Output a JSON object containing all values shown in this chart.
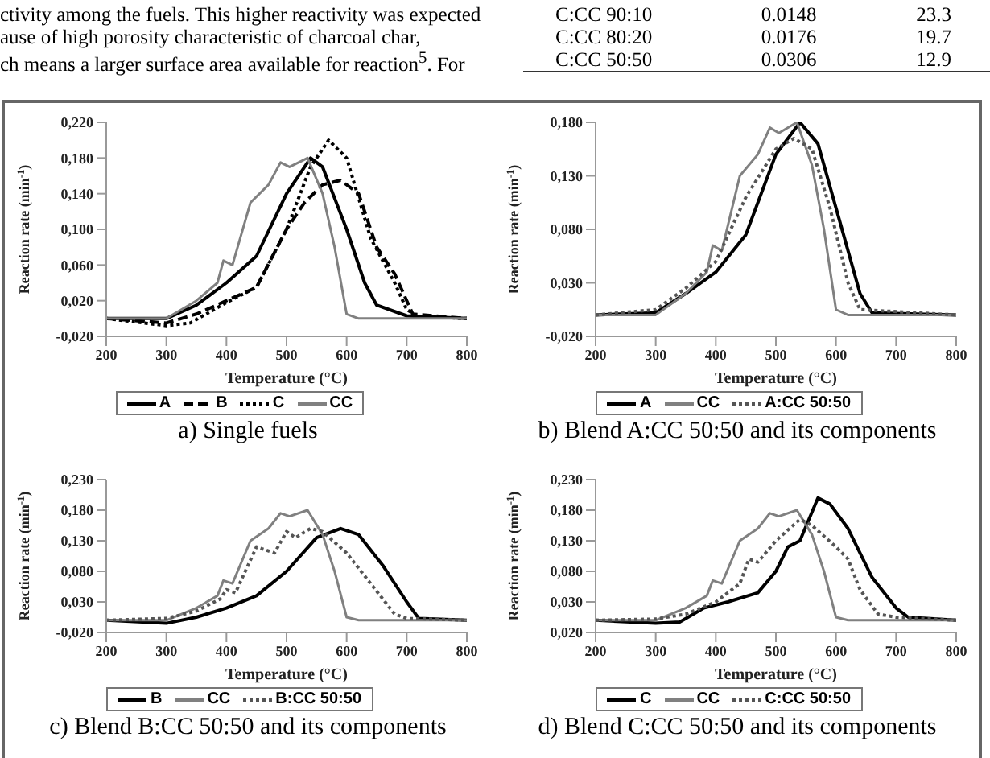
{
  "chart_data": [
    {
      "type": "other",
      "annotations": [
        "ctivity among the fuels. This higher reactivity was expected",
        "ause of high porosity characteristic of charcoal char,",
        "ch means a larger surface area available for reaction$^{5}$. For",
        "C:CC 90:10",
        "0.0148",
        "23.3",
        "C:CC 80:20",
        "0.0176",
        "19.7",
        "C:CC 50:50",
        "0.0306",
        "12.9"
      ]
    },
    {
      "type": "line",
      "title": "a) Single fuels",
      "xlabel": "Temperature (°C)",
      "ylabel": "Reaction rate (min$^{-1}$)",
      "xlim": [
        200,
        800
      ],
      "xticks": [
        200,
        300,
        400,
        500,
        600,
        700,
        800
      ],
      "ylim": [
        -0.02,
        0.22
      ],
      "yticks": [
        {
          "value": -0.02,
          "label": "-0,020"
        },
        {
          "value": 0.02,
          "label": "0,020"
        },
        {
          "value": 0.06,
          "label": "0,060"
        },
        {
          "value": 0.1,
          "label": "0,100"
        },
        {
          "value": 0.14,
          "label": "0,140"
        },
        {
          "value": 0.18,
          "label": "0,180"
        },
        {
          "value": 0.22,
          "label": "0,220"
        }
      ],
      "legend": "bottom",
      "series": [
        {
          "name": "A",
          "color": "#000000",
          "line_style": "solid",
          "x": [
            200,
            300,
            350,
            400,
            450,
            500,
            540,
            560,
            600,
            630,
            650,
            700,
            800
          ],
          "values": [
            0,
            0,
            0.015,
            0.04,
            0.07,
            0.14,
            0.18,
            0.17,
            0.1,
            0.04,
            0.015,
            0.003,
            0
          ]
        },
        {
          "name": "B",
          "color": "#000000",
          "line_style": "dashed",
          "x": [
            200,
            300,
            350,
            400,
            450,
            500,
            530,
            560,
            590,
            620,
            650,
            680,
            710,
            800
          ],
          "values": [
            0,
            -0.005,
            0.005,
            0.02,
            0.035,
            0.1,
            0.13,
            0.15,
            0.155,
            0.14,
            0.08,
            0.05,
            0.005,
            0
          ]
        },
        {
          "name": "C",
          "color": "#000000",
          "line_style": "dotted",
          "x": [
            200,
            300,
            340,
            400,
            450,
            500,
            540,
            570,
            600,
            640,
            680,
            700,
            720,
            800
          ],
          "values": [
            0,
            -0.008,
            -0.005,
            0.018,
            0.035,
            0.1,
            0.17,
            0.2,
            0.18,
            0.09,
            0.04,
            0.01,
            0.002,
            0
          ]
        },
        {
          "name": "CC",
          "color": "#808080",
          "line_style": "solid",
          "x": [
            200,
            300,
            350,
            385,
            395,
            410,
            440,
            470,
            490,
            505,
            535,
            560,
            580,
            600,
            620,
            800
          ],
          "values": [
            0,
            0,
            0.02,
            0.04,
            0.065,
            0.06,
            0.13,
            0.15,
            0.175,
            0.17,
            0.18,
            0.14,
            0.08,
            0.005,
            0,
            0
          ]
        }
      ]
    },
    {
      "type": "line",
      "title": "b) Blend A:CC 50:50 and its components",
      "xlabel": "Temperature (°C)",
      "ylabel": "Reaction rate (min$^{-1}$)",
      "xlim": [
        200,
        800
      ],
      "xticks": [
        200,
        300,
        400,
        500,
        600,
        700,
        800
      ],
      "ylim": [
        -0.02,
        0.18
      ],
      "yticks": [
        {
          "value": -0.02,
          "label": "-0,020"
        },
        {
          "value": 0.03,
          "label": "0,030"
        },
        {
          "value": 0.08,
          "label": "0,080"
        },
        {
          "value": 0.13,
          "label": "0,130"
        },
        {
          "value": 0.18,
          "label": "0,180"
        }
      ],
      "legend": "bottom",
      "series": [
        {
          "name": "A",
          "color": "#000000",
          "line_style": "solid",
          "x": [
            200,
            300,
            350,
            400,
            450,
            500,
            540,
            570,
            600,
            640,
            660,
            800
          ],
          "values": [
            0,
            0.002,
            0.02,
            0.04,
            0.075,
            0.15,
            0.18,
            0.16,
            0.1,
            0.02,
            0.002,
            0
          ]
        },
        {
          "name": "CC",
          "color": "#808080",
          "line_style": "solid",
          "x": [
            200,
            300,
            350,
            385,
            395,
            410,
            440,
            470,
            490,
            505,
            535,
            560,
            580,
            600,
            620,
            800
          ],
          "values": [
            0,
            0,
            0.02,
            0.04,
            0.065,
            0.06,
            0.13,
            0.15,
            0.175,
            0.17,
            0.18,
            0.14,
            0.08,
            0.005,
            0,
            0
          ]
        },
        {
          "name": "A:CC 50:50",
          "color": "#555555",
          "line_style": "dotted",
          "x": [
            200,
            300,
            350,
            400,
            450,
            500,
            530,
            560,
            590,
            620,
            640,
            800
          ],
          "values": [
            0,
            0.005,
            0.025,
            0.05,
            0.11,
            0.155,
            0.165,
            0.155,
            0.1,
            0.03,
            0.005,
            0
          ]
        }
      ]
    },
    {
      "type": "line",
      "title": "c) Blend B:CC 50:50 and its components",
      "xlabel": "Temperature (°C)",
      "ylabel": "Reaction rate (min$^{-1}$)",
      "xlim": [
        200,
        800
      ],
      "xticks": [
        200,
        300,
        400,
        500,
        600,
        700,
        800
      ],
      "ylim": [
        -0.02,
        0.23
      ],
      "yticks": [
        {
          "value": -0.02,
          "label": "-0,020"
        },
        {
          "value": 0.03,
          "label": "0,030"
        },
        {
          "value": 0.08,
          "label": "0,080"
        },
        {
          "value": 0.13,
          "label": "0,130"
        },
        {
          "value": 0.18,
          "label": "0,180"
        },
        {
          "value": 0.23,
          "label": "0,230"
        }
      ],
      "legend": "bottom",
      "series": [
        {
          "name": "B",
          "color": "#000000",
          "line_style": "solid",
          "x": [
            200,
            300,
            350,
            400,
            450,
            500,
            550,
            590,
            620,
            660,
            700,
            720,
            800
          ],
          "values": [
            0,
            -0.005,
            0.005,
            0.02,
            0.04,
            0.08,
            0.135,
            0.15,
            0.14,
            0.09,
            0.03,
            0.003,
            0
          ]
        },
        {
          "name": "CC",
          "color": "#808080",
          "line_style": "solid",
          "x": [
            200,
            300,
            350,
            385,
            395,
            410,
            440,
            470,
            490,
            505,
            535,
            560,
            580,
            600,
            620,
            800
          ],
          "values": [
            0,
            0,
            0.02,
            0.04,
            0.065,
            0.06,
            0.13,
            0.15,
            0.175,
            0.17,
            0.18,
            0.14,
            0.08,
            0.005,
            0,
            0
          ]
        },
        {
          "name": "B:CC 50:50",
          "color": "#555555",
          "line_style": "dotted",
          "x": [
            200,
            300,
            350,
            390,
            400,
            415,
            450,
            480,
            500,
            515,
            540,
            560,
            600,
            640,
            680,
            700,
            800
          ],
          "values": [
            0,
            0.003,
            0.015,
            0.035,
            0.05,
            0.045,
            0.12,
            0.11,
            0.145,
            0.135,
            0.15,
            0.145,
            0.11,
            0.06,
            0.01,
            0.003,
            0
          ]
        }
      ]
    },
    {
      "type": "line",
      "title": "d) Blend C:CC 50:50 and its components",
      "xlabel": "Temperature (°C)",
      "ylabel": "Reaction rate (min$^{-1}$)",
      "xlim": [
        200,
        800
      ],
      "xticks": [
        200,
        300,
        400,
        500,
        600,
        700,
        800
      ],
      "ylim": [
        -0.02,
        0.23
      ],
      "yticks": [
        {
          "value": -0.02,
          "label": "0,020"
        },
        {
          "value": 0.03,
          "label": "0,030"
        },
        {
          "value": 0.08,
          "label": "0,080"
        },
        {
          "value": 0.13,
          "label": "0,130"
        },
        {
          "value": 0.18,
          "label": "0,180"
        },
        {
          "value": 0.23,
          "label": "0,230"
        }
      ],
      "legend": "bottom",
      "series": [
        {
          "name": "C",
          "color": "#000000",
          "line_style": "solid",
          "x": [
            200,
            300,
            340,
            380,
            420,
            470,
            500,
            520,
            540,
            570,
            590,
            620,
            660,
            700,
            720,
            800
          ],
          "values": [
            0,
            -0.005,
            -0.003,
            0.02,
            0.03,
            0.045,
            0.08,
            0.12,
            0.13,
            0.2,
            0.19,
            0.15,
            0.07,
            0.02,
            0.005,
            0
          ]
        },
        {
          "name": "CC",
          "color": "#808080",
          "line_style": "solid",
          "x": [
            200,
            300,
            350,
            385,
            395,
            410,
            440,
            470,
            490,
            505,
            535,
            560,
            580,
            600,
            620,
            800
          ],
          "values": [
            0,
            0,
            0.02,
            0.04,
            0.065,
            0.06,
            0.13,
            0.15,
            0.175,
            0.17,
            0.18,
            0.14,
            0.08,
            0.005,
            0,
            0
          ]
        },
        {
          "name": "C:CC 50:50",
          "color": "#555555",
          "line_style": "dotted",
          "x": [
            200,
            300,
            350,
            400,
            440,
            455,
            470,
            500,
            540,
            560,
            600,
            620,
            640,
            670,
            700,
            800
          ],
          "values": [
            0,
            0.002,
            0.01,
            0.03,
            0.06,
            0.1,
            0.095,
            0.13,
            0.165,
            0.155,
            0.12,
            0.1,
            0.05,
            0.01,
            0.005,
            0
          ]
        }
      ]
    }
  ]
}
